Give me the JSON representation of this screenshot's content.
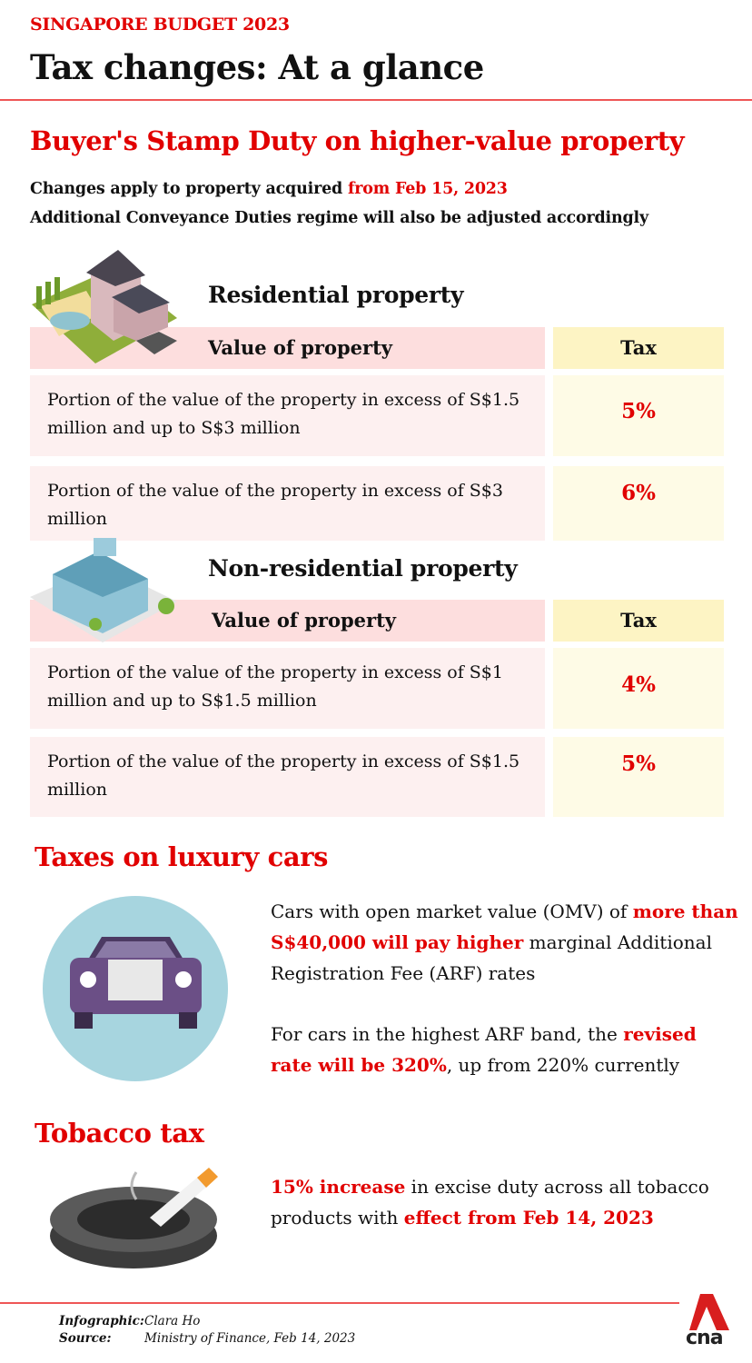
{
  "header": {
    "kicker": "SINGAPORE BUDGET 2023",
    "title": "Tax changes: At a glance"
  },
  "stamp_duty": {
    "heading": "Buyer's Stamp Duty on higher-value property",
    "line1_prefix": "Changes apply to property acquired ",
    "line1_highlight": "from Feb 15, 2023",
    "line2": "Additional Conveyance Duties regime will also be adjusted accordingly",
    "residential": {
      "title": "Residential property",
      "col_value": "Value of property",
      "col_tax": "Tax",
      "rows": [
        {
          "value": "Portion of the value of the property in excess of S$1.5 million and up to S$3 million",
          "tax": "5%"
        },
        {
          "value": "Portion of the value of the property in excess of S$3 million",
          "tax": "6%"
        }
      ]
    },
    "non_residential": {
      "title": "Non-residential property",
      "col_value": "Value of property",
      "col_tax": "Tax",
      "rows": [
        {
          "value": "Portion of the value of the property in excess of S$1 million and up to S$1.5 million",
          "tax": "4%"
        },
        {
          "value": "Portion of the value of the property in excess of S$1.5 million",
          "tax": "5%"
        }
      ]
    }
  },
  "cars": {
    "heading": "Taxes on luxury cars",
    "p1_a": "Cars with open market value (OMV) of ",
    "p1_b": "more than S$40,000 will pay higher",
    "p1_c": " marginal Additional Registration Fee (ARF) rates",
    "p2_a": "For cars in the highest ARF band, the ",
    "p2_b": "revised rate will be 320%",
    "p2_c": ", up from 220% currently"
  },
  "tobacco": {
    "heading": "Tobacco tax",
    "p_a": "15% increase",
    "p_b": " in excise duty across all tobacco products with ",
    "p_c": "effect from Feb 14, 2023"
  },
  "footer": {
    "infographic_label": "Infographic:",
    "infographic_value": "Clara Ho",
    "source_label": "Source:",
    "source_value": "Ministry of Finance, Feb 14, 2023",
    "logo": "cna"
  }
}
